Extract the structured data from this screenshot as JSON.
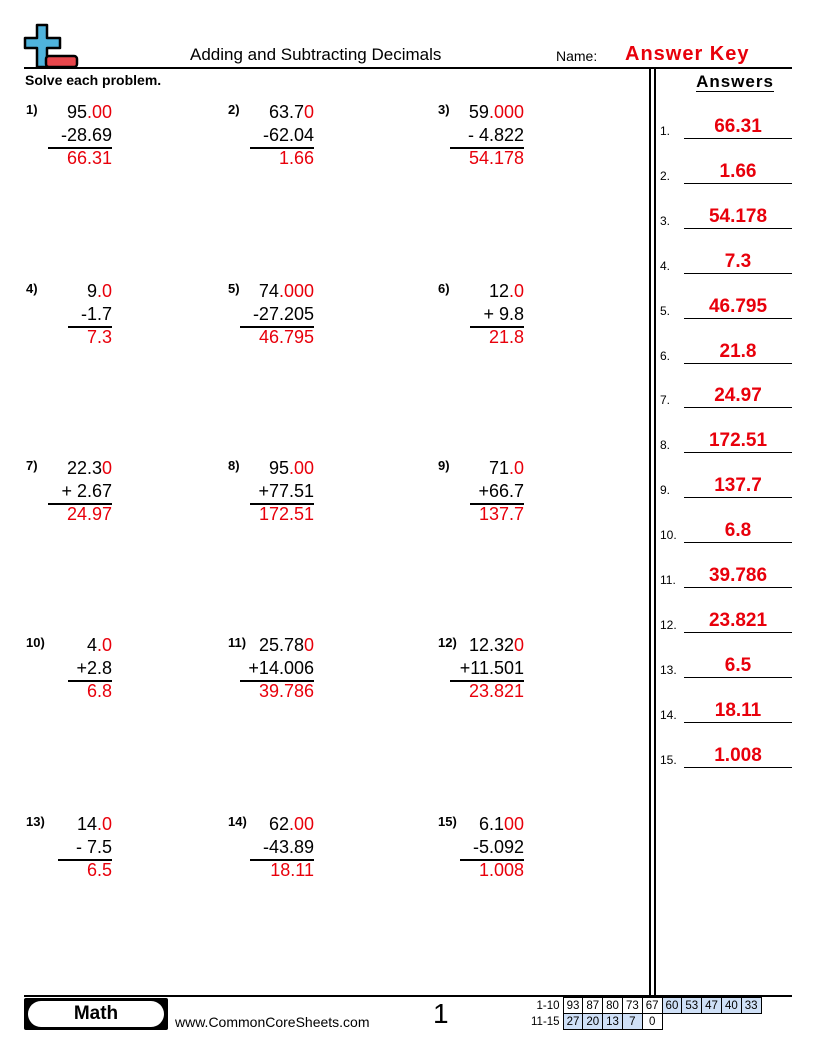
{
  "header": {
    "title": "Adding and Subtracting Decimals",
    "name_label": "Name:",
    "name_value": "Answer Key",
    "instructions": "Solve each problem."
  },
  "problems": [
    {
      "n": "1)",
      "top": "95",
      "pad": ".00",
      "bottom": "-28.69",
      "answer": "66.31"
    },
    {
      "n": "2)",
      "top": "63.7",
      "pad": "0",
      "bottom": "-62.04",
      "answer": "1.66"
    },
    {
      "n": "3)",
      "top": "59",
      "pad": ".000",
      "bottom": "- 4.822",
      "answer": "54.178"
    },
    {
      "n": "4)",
      "top": "9",
      "pad": ".0",
      "bottom": "-1.7",
      "answer": "7.3"
    },
    {
      "n": "5)",
      "top": "74",
      "pad": ".000",
      "bottom": "-27.205",
      "answer": "46.795"
    },
    {
      "n": "6)",
      "top": "12",
      "pad": ".0",
      "bottom": "+ 9.8",
      "answer": "21.8"
    },
    {
      "n": "7)",
      "top": "22.3",
      "pad": "0",
      "bottom": "+ 2.67",
      "answer": "24.97"
    },
    {
      "n": "8)",
      "top": "95",
      "pad": ".00",
      "bottom": "+77.51",
      "answer": "172.51"
    },
    {
      "n": "9)",
      "top": "71",
      "pad": ".0",
      "bottom": "+66.7",
      "answer": "137.7"
    },
    {
      "n": "10)",
      "top": "4",
      "pad": ".0",
      "bottom": "+2.8",
      "answer": "6.8"
    },
    {
      "n": "11)",
      "top": "25.78",
      "pad": "0",
      "bottom": "+14.006",
      "answer": "39.786"
    },
    {
      "n": "12)",
      "top": "12.32",
      "pad": "0",
      "bottom": "+11.501",
      "answer": "23.821"
    },
    {
      "n": "13)",
      "top": "14",
      "pad": ".0",
      "bottom": "- 7.5",
      "answer": "6.5"
    },
    {
      "n": "14)",
      "top": "62",
      "pad": ".00",
      "bottom": "-43.89",
      "answer": "18.11"
    },
    {
      "n": "15)",
      "top": "6.1",
      "pad": "00",
      "bottom": "-5.092",
      "answer": "1.008"
    }
  ],
  "answers": {
    "title": "Answers",
    "items": [
      {
        "n": "1.",
        "v": "66.31"
      },
      {
        "n": "2.",
        "v": "1.66"
      },
      {
        "n": "3.",
        "v": "54.178"
      },
      {
        "n": "4.",
        "v": "7.3"
      },
      {
        "n": "5.",
        "v": "46.795"
      },
      {
        "n": "6.",
        "v": "21.8"
      },
      {
        "n": "7.",
        "v": "24.97"
      },
      {
        "n": "8.",
        "v": "172.51"
      },
      {
        "n": "9.",
        "v": "137.7"
      },
      {
        "n": "10.",
        "v": "6.8"
      },
      {
        "n": "11.",
        "v": "39.786"
      },
      {
        "n": "12.",
        "v": "23.821"
      },
      {
        "n": "13.",
        "v": "6.5"
      },
      {
        "n": "14.",
        "v": "18.11"
      },
      {
        "n": "15.",
        "v": "1.008"
      }
    ]
  },
  "footer": {
    "subject": "Math",
    "site": "www.CommonCoreSheets.com",
    "page": "1",
    "score_rows": [
      {
        "label": "1-10",
        "values": [
          "93",
          "87",
          "80",
          "73",
          "67",
          "60",
          "53",
          "47",
          "40",
          "33"
        ]
      },
      {
        "label": "11-15",
        "values": [
          "27",
          "20",
          "13",
          "7",
          "0"
        ]
      }
    ]
  },
  "colors": {
    "answer": "#e8000b",
    "plus_icon": "#4fb3dc",
    "minus_icon": "#e8474c",
    "score_fill": "#cfe0f7"
  }
}
